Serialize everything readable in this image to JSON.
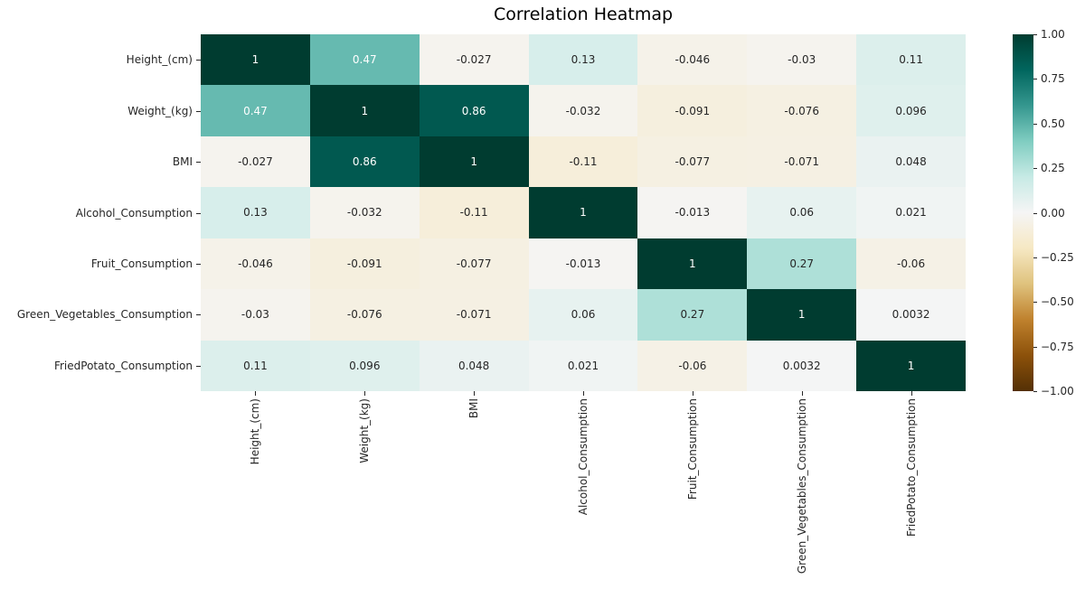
{
  "title": "Correlation Heatmap",
  "chart_data": {
    "type": "heatmap",
    "title": "Correlation Heatmap",
    "x_labels": [
      "Height_(cm)",
      "Weight_(kg)",
      "BMI",
      "Alcohol_Consumption",
      "Fruit_Consumption",
      "Green_Vegetables_Consumption",
      "FriedPotato_Consumption"
    ],
    "y_labels": [
      "Height_(cm)",
      "Weight_(kg)",
      "BMI",
      "Alcohol_Consumption",
      "Fruit_Consumption",
      "Green_Vegetables_Consumption",
      "FriedPotato_Consumption"
    ],
    "cells": [
      [
        "1",
        "0.47",
        "-0.027",
        "0.13",
        "-0.046",
        "-0.03",
        "0.11"
      ],
      [
        "0.47",
        "1",
        "0.86",
        "-0.032",
        "-0.091",
        "-0.076",
        "0.096"
      ],
      [
        "-0.027",
        "0.86",
        "1",
        "-0.11",
        "-0.077",
        "-0.071",
        "0.048"
      ],
      [
        "0.13",
        "-0.032",
        "-0.11",
        "1",
        "-0.013",
        "0.06",
        "0.021"
      ],
      [
        "-0.046",
        "-0.091",
        "-0.077",
        "-0.013",
        "1",
        "0.27",
        "-0.06"
      ],
      [
        "-0.03",
        "-0.076",
        "-0.071",
        "0.06",
        "0.27",
        "1",
        "0.0032"
      ],
      [
        "0.11",
        "0.096",
        "0.048",
        "0.021",
        "-0.06",
        "0.0032",
        "1"
      ]
    ],
    "vmin": -1,
    "vmax": 1,
    "colormap": {
      "name": "BrBG",
      "stops": [
        "#543005",
        "#8c510a",
        "#bf812d",
        "#dfc27d",
        "#f6e8c3",
        "#f5f5f5",
        "#c7eae5",
        "#80cdc1",
        "#35978f",
        "#01665e",
        "#003c30"
      ]
    },
    "colorbar": {
      "tick_labels": [
        "1.00",
        "0.75",
        "0.50",
        "0.25",
        "0.00",
        "−0.25",
        "−0.50",
        "−0.75",
        "−1.00"
      ],
      "tick_values": [
        1,
        0.75,
        0.5,
        0.25,
        0,
        -0.25,
        -0.5,
        -0.75,
        -1
      ],
      "position": "right"
    },
    "annotation_colors": {
      "light": "#ffffff",
      "dark": "#262626"
    },
    "grid": false,
    "legend_position": "none"
  }
}
